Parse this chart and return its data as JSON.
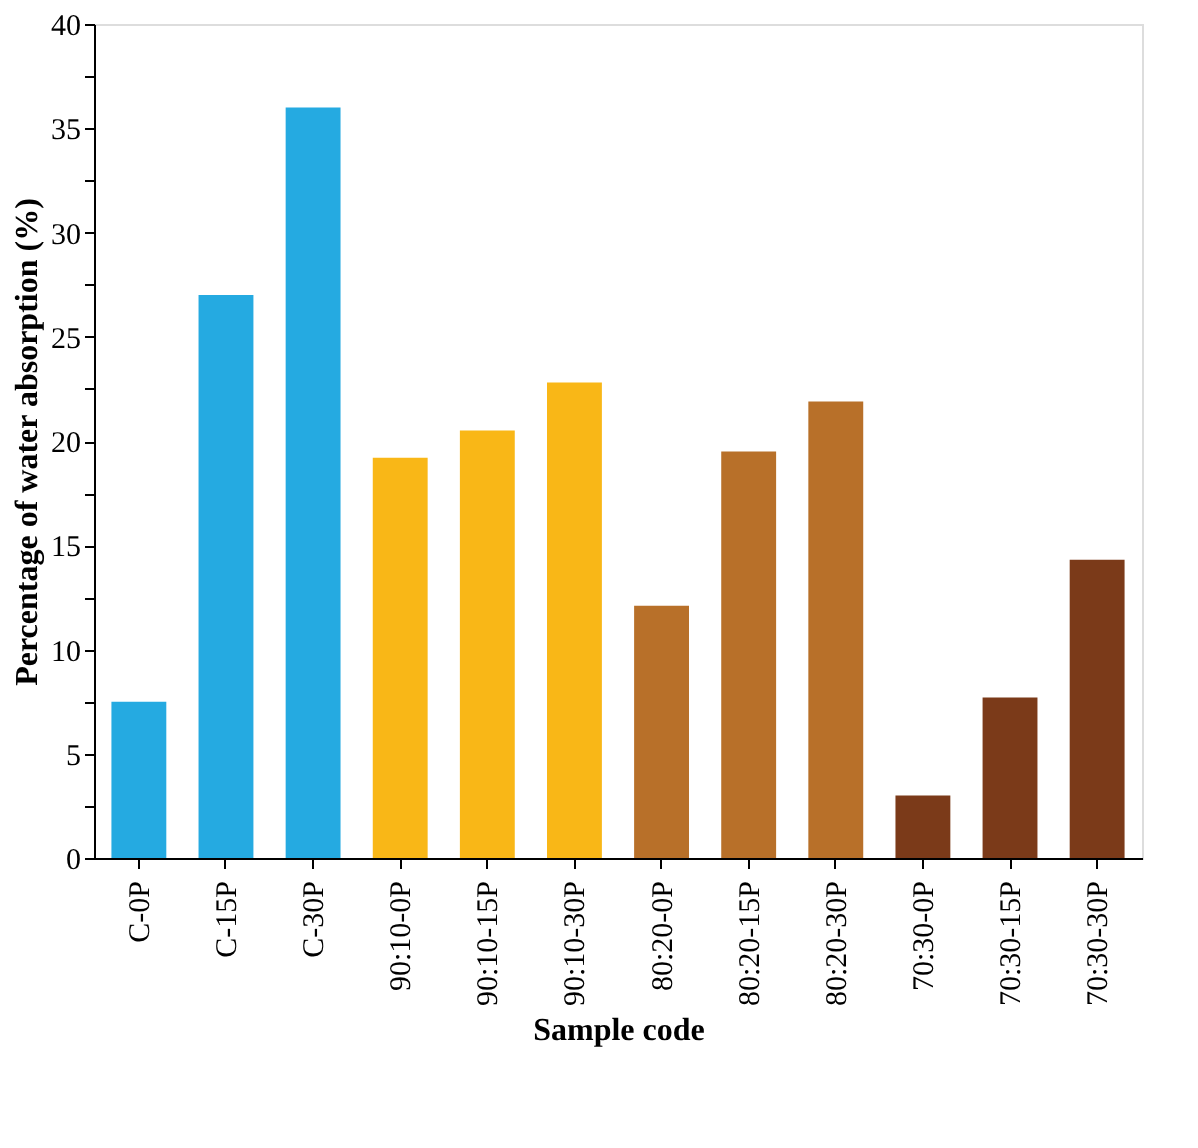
{
  "chart_data": {
    "type": "bar",
    "xlabel": "Sample code",
    "ylabel": "Percentage of water absorption (%)",
    "categories": [
      "C-0P",
      "C-15P",
      "C-30P",
      "90:10-0P",
      "90:10-15P",
      "90:10-30P",
      "80:20-0P",
      "80:20-15P",
      "80:20-30P",
      "70:30-0P",
      "70:30-15P",
      "70:30-30P"
    ],
    "values": [
      7.5,
      27,
      36,
      19.2,
      20.5,
      22.8,
      12.1,
      19.5,
      21.9,
      3.0,
      7.7,
      14.3
    ],
    "colors": [
      "#25aae1",
      "#25aae1",
      "#25aae1",
      "#f9b717",
      "#f9b717",
      "#f9b717",
      "#b87029",
      "#b87029",
      "#b87029",
      "#7b3a19",
      "#7b3a19",
      "#7b3a19"
    ],
    "ylim": [
      0,
      40
    ],
    "yticks": [
      0,
      {
        "value": 2.5,
        "label": null
      },
      5,
      {
        "value": 7.5,
        "label": null
      },
      10,
      {
        "value": 12.5,
        "label": null
      },
      15,
      {
        "value": 17.5,
        "label": null
      },
      20,
      {
        "value": 22.5,
        "label": null
      },
      25,
      {
        "value": 27.5,
        "label": null
      },
      30,
      {
        "value": 32.5,
        "label": null
      },
      35,
      {
        "value": 37.5,
        "label": null
      },
      40
    ],
    "grid": false,
    "legend": false
  }
}
